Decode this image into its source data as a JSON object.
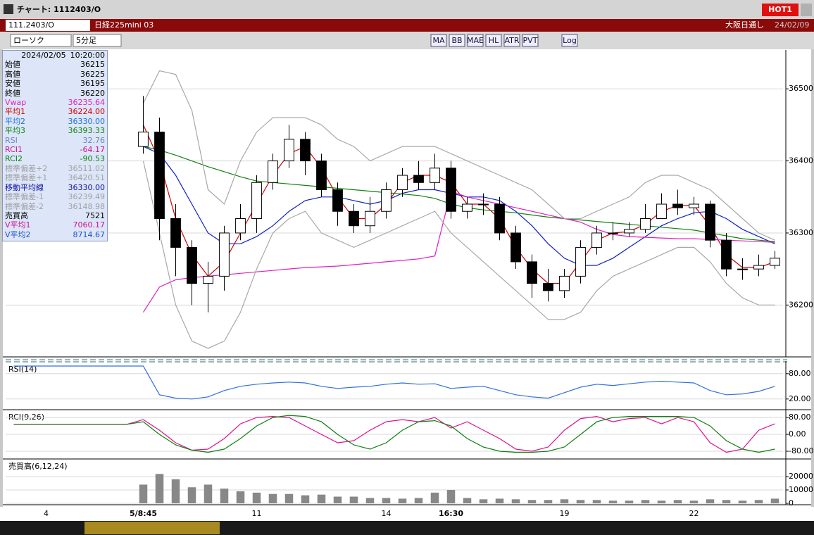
{
  "window": {
    "title": "チャート: 1112403/O",
    "hot_button": "HOT1",
    "symbol": "111.2403/O",
    "instrument": "日経225mini 03",
    "session": "大阪日通し",
    "date": "24/02/09",
    "chart_style": "ローソク",
    "interval": "5分足",
    "indicator_buttons": [
      "MA",
      "BB",
      "MAE",
      "HL",
      "ATR",
      "PVT",
      "Log"
    ]
  },
  "info_panel": {
    "date": "2024/02/05",
    "time": "10:20:00",
    "rows": [
      {
        "label": "始値",
        "value": "36215",
        "color": "#000000"
      },
      {
        "label": "高値",
        "value": "36225",
        "color": "#000000"
      },
      {
        "label": "安値",
        "value": "36195",
        "color": "#000000"
      },
      {
        "label": "終値",
        "value": "36220",
        "color": "#000000"
      },
      {
        "label": "Vwap",
        "value": "36235.64",
        "color": "#e020c0"
      },
      {
        "label": "平均1",
        "value": "36224.00",
        "color": "#d00000"
      },
      {
        "label": "平均2",
        "value": "36330.00",
        "color": "#2070d0"
      },
      {
        "label": "平均3",
        "value": "36393.33",
        "color": "#108010"
      },
      {
        "label": "RSI",
        "value": "32.76",
        "color": "#7080c0"
      },
      {
        "label": "RCI1",
        "value": "-64.17",
        "color": "#d01090"
      },
      {
        "label": "RCI2",
        "value": "-90.53",
        "color": "#108010"
      },
      {
        "label": "標準偏差+2",
        "value": "36511.02",
        "color": "#a0a0a0"
      },
      {
        "label": "標準偏差+1",
        "value": "36420.51",
        "color": "#a0a0a0"
      },
      {
        "label": "移動平均線",
        "value": "36330.00",
        "color": "#1010a0"
      },
      {
        "label": "標準偏差-1",
        "value": "36239.49",
        "color": "#a0a0a0"
      },
      {
        "label": "標準偏差-2",
        "value": "36148.98",
        "color": "#a0a0a0"
      },
      {
        "label": "売買高",
        "value": "7521",
        "color": "#000000"
      },
      {
        "label": "V平均1",
        "value": "7060.17",
        "color": "#d01090"
      },
      {
        "label": "V平均2",
        "value": "8714.67",
        "color": "#2050c0"
      }
    ]
  },
  "chart_data": [
    {
      "type": "candlestick",
      "ylim": [
        36130,
        36550
      ],
      "yticks": [
        36200,
        36300,
        36400,
        36500
      ],
      "categories": [
        null,
        null,
        "4",
        null,
        null,
        null,
        null,
        null,
        "5/8:45",
        null,
        null,
        null,
        null,
        null,
        null,
        "11",
        null,
        null,
        null,
        null,
        null,
        null,
        null,
        "14",
        null,
        null,
        null,
        "16:30",
        null,
        null,
        null,
        null,
        null,
        null,
        "19",
        null,
        null,
        null,
        null,
        null,
        null,
        null,
        "22",
        null,
        null,
        null,
        null,
        null
      ],
      "open": [
        null,
        null,
        null,
        null,
        null,
        null,
        null,
        null,
        36420,
        36440,
        36320,
        36280,
        36230,
        36240,
        36300,
        36320,
        36370,
        36400,
        36430,
        36400,
        36360,
        36330,
        36310,
        36330,
        36360,
        36380,
        36370,
        36390,
        36330,
        36340,
        36340,
        36300,
        36260,
        36230,
        36220,
        36240,
        36280,
        36300,
        36300,
        36305,
        36320,
        36340,
        36335,
        36340,
        36290,
        36250,
        36250,
        36255
      ],
      "high": [
        null,
        null,
        null,
        null,
        null,
        null,
        null,
        null,
        36490,
        36460,
        36340,
        36290,
        36260,
        36310,
        36340,
        36380,
        36410,
        36450,
        36440,
        36410,
        36370,
        36340,
        36350,
        36370,
        36390,
        36400,
        36410,
        36400,
        36350,
        36355,
        36350,
        36310,
        36270,
        36250,
        36250,
        36290,
        36310,
        36315,
        36315,
        36340,
        36355,
        36360,
        36350,
        36345,
        36300,
        36265,
        36270,
        36275
      ],
      "low": [
        null,
        null,
        null,
        null,
        null,
        null,
        null,
        null,
        36410,
        36290,
        36240,
        36200,
        36190,
        36220,
        36290,
        36300,
        36360,
        36390,
        36380,
        36350,
        36310,
        36300,
        36300,
        36320,
        36350,
        36360,
        36360,
        36320,
        36320,
        36325,
        36290,
        36250,
        36210,
        36205,
        36210,
        36230,
        36270,
        36290,
        36295,
        36300,
        36320,
        36325,
        36325,
        36280,
        36240,
        36235,
        36240,
        36250
      ],
      "close": [
        null,
        null,
        null,
        null,
        null,
        null,
        null,
        null,
        36440,
        36320,
        36280,
        36230,
        36240,
        36300,
        36320,
        36370,
        36400,
        36430,
        36400,
        36360,
        36330,
        36310,
        36330,
        36360,
        36380,
        36370,
        36390,
        36330,
        36340,
        36340,
        36300,
        36260,
        36230,
        36220,
        36240,
        36280,
        36300,
        36300,
        36305,
        36320,
        36340,
        36335,
        36340,
        36290,
        36250,
        36250,
        36255,
        36265
      ],
      "series": [
        {
          "name": "平均1",
          "color": "#d00000",
          "values": [
            null,
            null,
            null,
            null,
            null,
            null,
            null,
            null,
            36450,
            36400,
            36320,
            36270,
            36240,
            36260,
            36300,
            36340,
            36380,
            36410,
            36420,
            36390,
            36350,
            36320,
            36320,
            36340,
            36370,
            36380,
            36380,
            36370,
            36340,
            36340,
            36320,
            36280,
            36250,
            36230,
            36230,
            36260,
            36290,
            36300,
            36302,
            36312,
            36330,
            36338,
            36338,
            36310,
            36270,
            36252,
            36252,
            36260
          ]
        },
        {
          "name": "平均2",
          "color": "#1020c0",
          "values": [
            null,
            null,
            null,
            null,
            null,
            null,
            null,
            null,
            36420,
            36410,
            36380,
            36340,
            36300,
            36285,
            36285,
            36295,
            36310,
            36330,
            36345,
            36350,
            36350,
            36345,
            36340,
            36345,
            36355,
            36360,
            36360,
            36355,
            36350,
            36350,
            36345,
            36330,
            36310,
            36285,
            36265,
            36255,
            36255,
            36265,
            36280,
            36295,
            36310,
            36320,
            36328,
            36330,
            36320,
            36305,
            36295,
            36285
          ]
        },
        {
          "name": "平均3",
          "color": "#108010",
          "values": [
            null,
            null,
            null,
            null,
            null,
            null,
            null,
            null,
            36420,
            36415,
            36408,
            36400,
            36392,
            36385,
            36378,
            36372,
            36370,
            36368,
            36366,
            36364,
            36362,
            36360,
            36358,
            36356,
            36354,
            36352,
            36348,
            36340,
            36335,
            36332,
            36330,
            36328,
            36325,
            36322,
            36320,
            36318,
            36316,
            36314,
            36312,
            36310,
            36308,
            36306,
            36304,
            36300,
            36296,
            36292,
            36290,
            36288
          ]
        },
        {
          "name": "Vwap",
          "color": "#e020c0",
          "values": [
            null,
            null,
            null,
            null,
            null,
            null,
            null,
            null,
            36190,
            36225,
            36235,
            36238,
            36240,
            36242,
            36244,
            36246,
            36248,
            36250,
            36252,
            36253,
            36254,
            36256,
            36258,
            36260,
            36262,
            36264,
            36268,
            36358,
            36350,
            36345,
            36340,
            36335,
            36330,
            36325,
            36320,
            36315,
            36305,
            36298,
            36295,
            36294,
            36293,
            36292,
            36292,
            36291,
            36290,
            36289,
            36288,
            36287
          ]
        },
        {
          "name": "標準偏差+2",
          "color": "#a8a8a8",
          "values": [
            null,
            null,
            null,
            null,
            null,
            null,
            null,
            null,
            36480,
            36525,
            36520,
            36470,
            36360,
            36340,
            36400,
            36440,
            36460,
            36460,
            36460,
            36450,
            36430,
            36420,
            36400,
            36410,
            36420,
            36420,
            36420,
            36410,
            36400,
            36390,
            36380,
            36370,
            36360,
            36340,
            36320,
            36320,
            36330,
            36340,
            36350,
            36370,
            36380,
            36380,
            36370,
            36360,
            36340,
            36320,
            36300,
            36290
          ]
        },
        {
          "name": "標準偏差-2",
          "color": "#a8a8a8",
          "values": [
            null,
            null,
            null,
            null,
            null,
            null,
            null,
            null,
            36400,
            36300,
            36200,
            36150,
            36140,
            36150,
            36190,
            36250,
            36300,
            36320,
            36330,
            36300,
            36290,
            36280,
            36290,
            36300,
            36310,
            36320,
            36330,
            36300,
            36280,
            36260,
            36240,
            36220,
            36200,
            36180,
            36180,
            36190,
            36220,
            36240,
            36250,
            36260,
            36270,
            36280,
            36280,
            36260,
            36230,
            36210,
            36200,
            36200
          ]
        }
      ]
    },
    {
      "type": "line",
      "title": "RSI(14)",
      "ylim": [
        -2,
        103
      ],
      "yticks": [
        {
          "value": 80,
          "label": "80.00"
        },
        {
          "value": 20,
          "label": "20.00"
        }
      ],
      "series": [
        {
          "name": "RSI",
          "color": "#3070e0",
          "values": [
            98,
            98,
            98,
            98,
            98,
            98,
            98,
            98,
            98,
            30,
            22,
            20,
            25,
            40,
            50,
            55,
            58,
            60,
            58,
            50,
            45,
            48,
            50,
            55,
            58,
            55,
            56,
            45,
            48,
            50,
            40,
            30,
            25,
            22,
            35,
            48,
            55,
            52,
            56,
            60,
            62,
            60,
            58,
            40,
            30,
            32,
            38,
            50
          ]
        }
      ]
    },
    {
      "type": "line",
      "title": "RCI(9,26)",
      "ylim": [
        -110,
        107
      ],
      "yticks": [
        {
          "value": 80,
          "label": "80.00"
        },
        {
          "value": 0,
          "label": "0.00"
        },
        {
          "value": -80,
          "label": "-80.00"
        }
      ],
      "series": [
        {
          "name": "RCI1",
          "color": "#e01090",
          "values": [
            48,
            48,
            48,
            48,
            48,
            48,
            48,
            48,
            70,
            20,
            -40,
            -75,
            -70,
            -20,
            50,
            80,
            85,
            80,
            40,
            0,
            -40,
            -30,
            20,
            60,
            70,
            60,
            80,
            30,
            60,
            20,
            -20,
            -70,
            -80,
            -60,
            20,
            75,
            85,
            60,
            75,
            80,
            50,
            80,
            60,
            -40,
            -85,
            -70,
            20,
            50
          ]
        },
        {
          "name": "RCI2",
          "color": "#108010",
          "values": [
            48,
            48,
            48,
            48,
            48,
            48,
            48,
            48,
            60,
            0,
            -50,
            -75,
            -85,
            -70,
            -20,
            40,
            80,
            90,
            85,
            60,
            0,
            -50,
            -70,
            -40,
            20,
            60,
            65,
            40,
            -20,
            -60,
            -80,
            -85,
            -85,
            -80,
            -60,
            0,
            60,
            80,
            85,
            85,
            85,
            85,
            80,
            40,
            -30,
            -70,
            -85,
            -70
          ]
        }
      ]
    },
    {
      "type": "bar",
      "title": "売買高(6,12,24)",
      "ylim": [
        0,
        31600
      ],
      "yticks": [
        0,
        10000,
        20000
      ],
      "color": "#888888",
      "values": [
        null,
        null,
        null,
        null,
        null,
        null,
        null,
        null,
        14000,
        22000,
        18000,
        12000,
        14000,
        11000,
        9000,
        8000,
        7000,
        7000,
        6000,
        6500,
        5000,
        5000,
        4000,
        4000,
        3500,
        4000,
        8000,
        10000,
        4000,
        3000,
        3500,
        3000,
        2500,
        2500,
        3000,
        2500,
        2500,
        2000,
        2000,
        2500,
        2000,
        2500,
        2000,
        3000,
        2500,
        2000,
        2500,
        3500
      ]
    }
  ]
}
